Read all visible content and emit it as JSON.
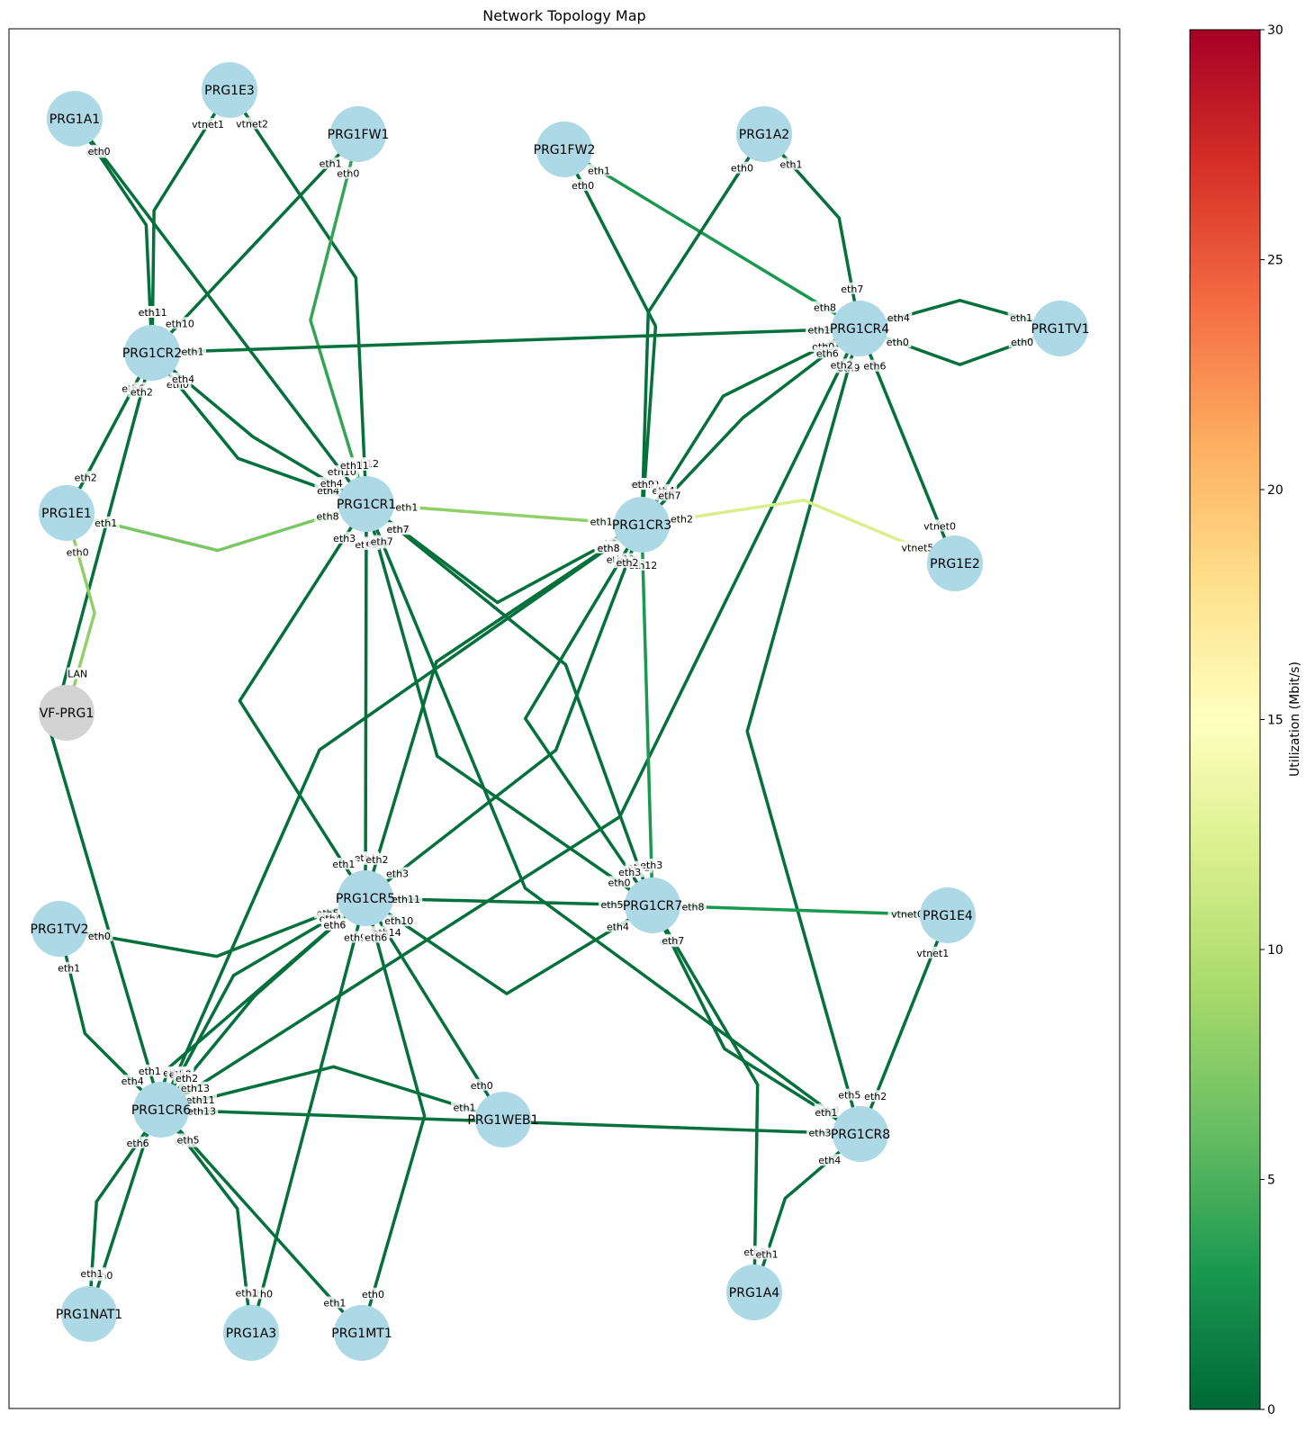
{
  "title": "Network Topology Map",
  "colorbar": {
    "label": "Utilization (Mbit/s)",
    "min": 0,
    "max": 30,
    "ticks": [
      "0",
      "5",
      "10",
      "15",
      "20",
      "25",
      "30"
    ],
    "colormap": "RdYlGn_r",
    "stops": [
      "#006837",
      "#1a9850",
      "#66bd63",
      "#a6d96a",
      "#d9ef8b",
      "#ffffbf",
      "#fee08b",
      "#fdae61",
      "#f46d43",
      "#d73027",
      "#a50026"
    ]
  },
  "colors": {
    "node_fill": "#add8e6",
    "external_node_fill": "#d3d3d3"
  },
  "nodes": [
    {
      "id": "PRG1A1",
      "label": "PRG1A1"
    },
    {
      "id": "PRG1E3",
      "label": "PRG1E3"
    },
    {
      "id": "PRG1FW1",
      "label": "PRG1FW1"
    },
    {
      "id": "PRG1FW2",
      "label": "PRG1FW2"
    },
    {
      "id": "PRG1A2",
      "label": "PRG1A2"
    },
    {
      "id": "PRG1CR2",
      "label": "PRG1CR2"
    },
    {
      "id": "PRG1CR4",
      "label": "PRG1CR4"
    },
    {
      "id": "PRG1TV1",
      "label": "PRG1TV1"
    },
    {
      "id": "PRG1E1",
      "label": "PRG1E1"
    },
    {
      "id": "PRG1CR1",
      "label": "PRG1CR1"
    },
    {
      "id": "PRG1CR3",
      "label": "PRG1CR3"
    },
    {
      "id": "PRG1E2",
      "label": "PRG1E2"
    },
    {
      "id": "VF-PRG1",
      "label": "VF-PRG1",
      "external": true
    },
    {
      "id": "PRG1CR5",
      "label": "PRG1CR5"
    },
    {
      "id": "PRG1CR7",
      "label": "PRG1CR7"
    },
    {
      "id": "PRG1E4",
      "label": "PRG1E4"
    },
    {
      "id": "PRG1TV2",
      "label": "PRG1TV2"
    },
    {
      "id": "PRG1CR6",
      "label": "PRG1CR6"
    },
    {
      "id": "PRG1WEB1",
      "label": "PRG1WEB1"
    },
    {
      "id": "PRG1CR8",
      "label": "PRG1CR8"
    },
    {
      "id": "PRG1A4",
      "label": "PRG1A4"
    },
    {
      "id": "PRG1NAT1",
      "label": "PRG1NAT1"
    },
    {
      "id": "PRG1A3",
      "label": "PRG1A3"
    },
    {
      "id": "PRG1MT1",
      "label": "PRG1MT1"
    }
  ],
  "links": [
    {
      "a": "PRG1A1",
      "b": "PRG1CR2",
      "a_if": "eth1",
      "b_if": "eth9",
      "util": 0.5
    },
    {
      "a": "PRG1A1",
      "b": "PRG1CR1",
      "a_if": "eth0",
      "b_if": "eth10",
      "util": 0.5
    },
    {
      "a": "PRG1E3",
      "b": "PRG1CR2",
      "a_if": "vtnet1",
      "b_if": "eth11",
      "util": 0.5
    },
    {
      "a": "PRG1E3",
      "b": "PRG1CR1",
      "a_if": "vtnet2",
      "b_if": "eth12",
      "util": 0.5
    },
    {
      "a": "PRG1FW1",
      "b": "PRG1CR2",
      "a_if": "eth1",
      "b_if": "eth10",
      "util": 0.5
    },
    {
      "a": "PRG1FW1",
      "b": "PRG1CR1",
      "a_if": "eth0",
      "b_if": "eth11",
      "util": 4
    },
    {
      "a": "PRG1FW2",
      "b": "PRG1CR3",
      "a_if": "eth0",
      "b_if": "eth10",
      "util": 0.5
    },
    {
      "a": "PRG1FW2",
      "b": "PRG1CR4",
      "a_if": "eth1",
      "b_if": "eth8",
      "util": 3
    },
    {
      "a": "PRG1A2",
      "b": "PRG1CR3",
      "a_if": "eth0",
      "b_if": "eth9",
      "util": 0.5
    },
    {
      "a": "PRG1A2",
      "b": "PRG1CR4",
      "a_if": "eth1",
      "b_if": "eth7",
      "util": 0.5
    },
    {
      "a": "PRG1CR2",
      "b": "PRG1CR4",
      "a_if": "eth1",
      "b_if": "eth1",
      "util": 0.5
    },
    {
      "a": "PRG1CR2",
      "b": "PRG1CR1",
      "a_if": "eth0",
      "b_if": "eth4",
      "util": 0.5
    },
    {
      "a": "PRG1CR2",
      "b": "PRG1CR1",
      "a_if": "eth4",
      "b_if": "eth4",
      "util": 0.5
    },
    {
      "a": "PRG1CR2",
      "b": "PRG1E1",
      "a_if": "eth6",
      "b_if": "eth2",
      "util": 0.5
    },
    {
      "a": "PRG1CR2",
      "b": "PRG1CR6",
      "a_if": "eth2",
      "b_if": "eth1",
      "util": 0.5
    },
    {
      "a": "PRG1CR4",
      "b": "PRG1TV1",
      "a_if": "eth4",
      "b_if": "eth1",
      "util": 0.5
    },
    {
      "a": "PRG1CR4",
      "b": "PRG1TV1",
      "a_if": "eth0",
      "b_if": "eth0",
      "util": 0.5
    },
    {
      "a": "PRG1CR4",
      "b": "PRG1CR3",
      "a_if": "eth0",
      "b_if": "eth4",
      "util": 0.5
    },
    {
      "a": "PRG1CR4",
      "b": "PRG1CR3",
      "a_if": "eth6",
      "b_if": "eth7",
      "util": 0.5
    },
    {
      "a": "PRG1CR4",
      "b": "PRG1E2",
      "a_if": "eth6",
      "b_if": "vtnet0",
      "util": 0.5
    },
    {
      "a": "PRG1CR4",
      "b": "PRG1CR8",
      "a_if": "eth9",
      "b_if": "eth5",
      "util": 0.5
    },
    {
      "a": "PRG1CR4",
      "b": "PRG1CR6",
      "a_if": "eth2",
      "b_if": "eth13",
      "util": 0.5
    },
    {
      "a": "PRG1CR1",
      "b": "PRG1CR3",
      "a_if": "eth1",
      "b_if": "eth1",
      "util": 8
    },
    {
      "a": "PRG1CR1",
      "b": "PRG1CR3",
      "a_if": "eth0",
      "b_if": "eth0",
      "util": 0.5
    },
    {
      "a": "PRG1CR1",
      "b": "PRG1E1",
      "a_if": "eth8",
      "b_if": "eth1",
      "util": 7
    },
    {
      "a": "PRG1CR1",
      "b": "PRG1CR5",
      "a_if": "eth3",
      "b_if": "eth1",
      "util": 0.5
    },
    {
      "a": "PRG1CR1",
      "b": "PRG1CR5",
      "a_if": "eth3",
      "b_if": "eth1",
      "util": 0.5
    },
    {
      "a": "PRG1CR1",
      "b": "PRG1CR7",
      "a_if": "eth7",
      "b_if": "eth1",
      "util": 0.5
    },
    {
      "a": "PRG1CR1",
      "b": "PRG1CR7",
      "a_if": "eth6",
      "b_if": "eth0",
      "util": 0.5
    },
    {
      "a": "PRG1CR1",
      "b": "PRG1CR8",
      "a_if": "eth7",
      "b_if": "eth0",
      "util": 0.5
    },
    {
      "a": "PRG1CR3",
      "b": "PRG1E2",
      "a_if": "eth2",
      "b_if": "vtnet5",
      "util": 12
    },
    {
      "a": "PRG1CR3",
      "b": "PRG1CR7",
      "a_if": "eth12",
      "b_if": "eth3",
      "util": 3
    },
    {
      "a": "PRG1CR3",
      "b": "PRG1CR7",
      "a_if": "eth12",
      "b_if": "eth3",
      "util": 0.5
    },
    {
      "a": "PRG1CR3",
      "b": "PRG1CR5",
      "a_if": "eth2",
      "b_if": "eth3",
      "util": 0.5
    },
    {
      "a": "PRG1CR3",
      "b": "PRG1CR5",
      "a_if": "eth3",
      "b_if": "eth2",
      "util": 0.5
    },
    {
      "a": "PRG1CR3",
      "b": "PRG1CR6",
      "a_if": "eth8",
      "b_if": "eth13",
      "util": 0.5
    },
    {
      "a": "PRG1E1",
      "b": "VF-PRG1",
      "a_if": "eth0",
      "b_if": "LAN",
      "util": 8
    },
    {
      "a": "PRG1CR5",
      "b": "PRG1CR7",
      "a_if": "eth11",
      "b_if": "eth5",
      "util": 0.5
    },
    {
      "a": "PRG1CR5",
      "b": "PRG1CR7",
      "a_if": "eth10",
      "b_if": "eth4",
      "util": 0.5
    },
    {
      "a": "PRG1CR5",
      "b": "PRG1TV2",
      "a_if": "eth5",
      "b_if": "eth0",
      "util": 0.5
    },
    {
      "a": "PRG1CR5",
      "b": "PRG1WEB1",
      "a_if": "eth14",
      "b_if": "eth0",
      "util": 0.5
    },
    {
      "a": "PRG1CR5",
      "b": "PRG1CR6",
      "a_if": "eth4",
      "b_if": "eth2",
      "util": 0.5
    },
    {
      "a": "PRG1CR5",
      "b": "PRG1CR6",
      "a_if": "eth7",
      "b_if": "eth2",
      "util": 0.5
    },
    {
      "a": "PRG1CR5",
      "b": "PRG1A3",
      "a_if": "eth9",
      "b_if": "eth0",
      "util": 0.5
    },
    {
      "a": "PRG1CR5",
      "b": "PRG1NAT1",
      "a_if": "eth6",
      "b_if": "eth0",
      "util": 0.5
    },
    {
      "a": "PRG1CR5",
      "b": "PRG1MT1",
      "a_if": "eth6",
      "b_if": "eth0",
      "util": 0.5
    },
    {
      "a": "PRG1CR7",
      "b": "PRG1E4",
      "a_if": "eth8",
      "b_if": "vtnet0",
      "util": 3
    },
    {
      "a": "PRG1CR7",
      "b": "PRG1CR8",
      "a_if": "eth6",
      "b_if": "eth1",
      "util": 0.5
    },
    {
      "a": "PRG1CR7",
      "b": "PRG1A4",
      "a_if": "eth7",
      "b_if": "eth0",
      "util": 0.5
    },
    {
      "a": "PRG1E4",
      "b": "PRG1CR8",
      "a_if": "vtnet1",
      "b_if": "eth2",
      "util": 0.5
    },
    {
      "a": "PRG1TV2",
      "b": "PRG1CR6",
      "a_if": "eth1",
      "b_if": "eth4",
      "util": 0.5
    },
    {
      "a": "PRG1CR6",
      "b": "PRG1WEB1",
      "a_if": "eth11",
      "b_if": "eth1",
      "util": 0.5
    },
    {
      "a": "PRG1CR6",
      "b": "PRG1CR8",
      "a_if": "eth13",
      "b_if": "eth3",
      "util": 0.5
    },
    {
      "a": "PRG1CR6",
      "b": "PRG1NAT1",
      "a_if": "eth6",
      "b_if": "eth1",
      "util": 0.5
    },
    {
      "a": "PRG1CR6",
      "b": "PRG1A3",
      "a_if": "eth8",
      "b_if": "eth1",
      "util": 0.5
    },
    {
      "a": "PRG1CR6",
      "b": "PRG1MT1",
      "a_if": "eth5",
      "b_if": "eth1",
      "util": 0.5
    },
    {
      "a": "PRG1CR8",
      "b": "PRG1A4",
      "a_if": "eth4",
      "b_if": "eth1",
      "util": 0.5
    }
  ]
}
